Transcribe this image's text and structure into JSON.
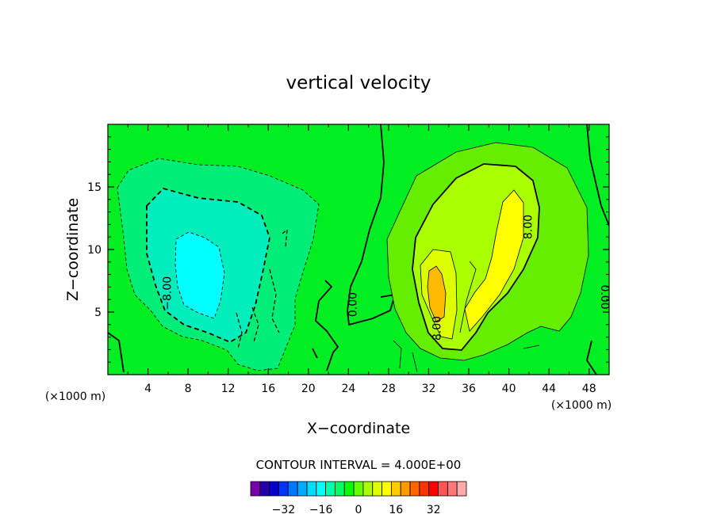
{
  "chart_data": {
    "type": "heatmap",
    "title": "vertical velocity",
    "xlabel": "X−coordinate",
    "ylabel": "Z−coordinate",
    "x_unit_left": "(×1000 m)",
    "x_unit_right": "(×1000 m)",
    "xlim": [
      0,
      50
    ],
    "ylim": [
      0,
      20
    ],
    "x_ticks": [
      4,
      8,
      12,
      16,
      20,
      24,
      28,
      32,
      36,
      40,
      44,
      48
    ],
    "y_ticks": [
      5,
      10,
      15
    ],
    "contour_interval_label": "CONTOUR INTERVAL = 4.000E+00",
    "contour_labels": [
      {
        "text": "−8.00",
        "x": 6.3,
        "z": 6.5,
        "rotate": -90
      },
      {
        "text": "0.00",
        "x": 24.8,
        "z": 5.6,
        "rotate": -90
      },
      {
        "text": "8.00",
        "x": 33.2,
        "z": 3.7,
        "rotate": -90
      },
      {
        "text": "8.00",
        "x": 42.3,
        "z": 11.8,
        "rotate": -90
      },
      {
        "text": "0.00",
        "x": 49.2,
        "z": 6.2,
        "rotate": 90
      }
    ],
    "colorbar": {
      "colors": [
        "#7700aa",
        "#2200aa",
        "#0000cc",
        "#0033ff",
        "#0077ff",
        "#00aaff",
        "#00ddff",
        "#00ffff",
        "#00ffaa",
        "#00ff66",
        "#00ff00",
        "#66ff00",
        "#aaff00",
        "#ddff00",
        "#ffff00",
        "#ffcc00",
        "#ff9900",
        "#ff6600",
        "#ff3300",
        "#ff0000",
        "#ff5555",
        "#ff7777",
        "#ffaaaa"
      ],
      "tick_labels": [
        "−32",
        "−16",
        "0",
        "16",
        "32"
      ],
      "tick_values": [
        -32,
        -16,
        0,
        16,
        32
      ]
    }
  }
}
